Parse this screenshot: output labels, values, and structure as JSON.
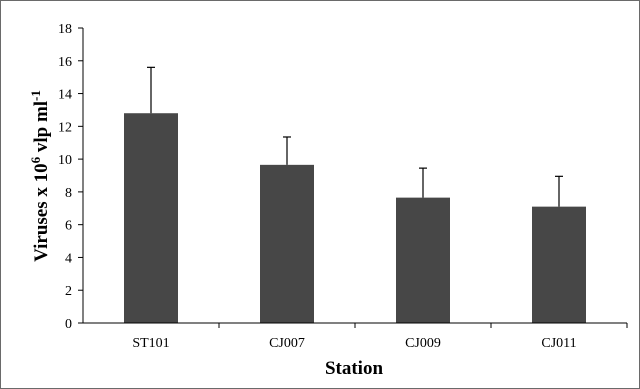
{
  "chart_data": {
    "type": "bar",
    "title": "",
    "xlabel": "Station",
    "ylabel": {
      "base": "Viruses x 10",
      "base_exponent": "6",
      "unit": " vlp ml",
      "unit_exponent": "-1"
    },
    "categories": [
      "ST101",
      "CJ007",
      "CJ009",
      "CJ011"
    ],
    "series": [
      {
        "values": [
          12.8,
          9.65,
          7.65,
          7.1
        ],
        "error_upper": [
          2.8,
          1.7,
          1.8,
          1.85
        ]
      }
    ],
    "ylim": [
      0,
      18
    ],
    "yticks": [
      0,
      2,
      4,
      6,
      8,
      10,
      12,
      14,
      16,
      18
    ],
    "grid": false,
    "legend": "none",
    "colors": {
      "bar": "#474747",
      "axis": "#000000",
      "frame": "#6a6a6a"
    }
  }
}
